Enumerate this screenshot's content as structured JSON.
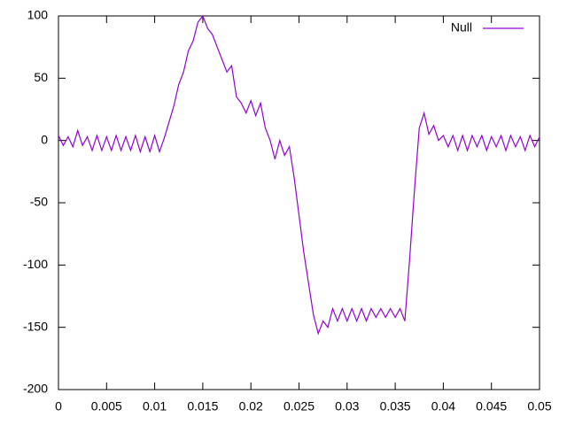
{
  "chart_data": {
    "type": "line",
    "x": [
      0,
      0.0005,
      0.001,
      0.0015,
      0.002,
      0.0025,
      0.003,
      0.0035,
      0.004,
      0.0045,
      0.005,
      0.0055,
      0.006,
      0.0065,
      0.007,
      0.0075,
      0.008,
      0.0085,
      0.009,
      0.0095,
      0.01,
      0.0105,
      0.011,
      0.0115,
      0.012,
      0.0125,
      0.013,
      0.0135,
      0.014,
      0.0145,
      0.015,
      0.0155,
      0.016,
      0.0165,
      0.017,
      0.0175,
      0.018,
      0.0185,
      0.019,
      0.0195,
      0.02,
      0.0205,
      0.021,
      0.0215,
      0.022,
      0.0225,
      0.023,
      0.0235,
      0.024,
      0.0245,
      0.025,
      0.0255,
      0.026,
      0.0265,
      0.027,
      0.0275,
      0.028,
      0.0285,
      0.029,
      0.0295,
      0.03,
      0.0305,
      0.031,
      0.0315,
      0.032,
      0.0325,
      0.033,
      0.0335,
      0.034,
      0.0345,
      0.035,
      0.0355,
      0.036,
      0.0365,
      0.037,
      0.0375,
      0.038,
      0.0385,
      0.039,
      0.0395,
      0.04,
      0.0405,
      0.041,
      0.0415,
      0.042,
      0.0425,
      0.043,
      0.0435,
      0.044,
      0.0445,
      0.045,
      0.0455,
      0.046,
      0.0465,
      0.047,
      0.0475,
      0.048,
      0.0485,
      0.049,
      0.0495,
      0.05
    ],
    "series": [
      {
        "name": "Null",
        "color": "#9400d3",
        "values": [
          4,
          -4,
          3,
          -5,
          8,
          -4,
          3,
          -8,
          4,
          -8,
          3,
          -8,
          4,
          -8,
          3,
          -8,
          4,
          -9,
          3,
          -9,
          4,
          -9,
          2,
          15,
          28,
          45,
          55,
          72,
          80,
          95,
          100,
          90,
          85,
          75,
          65,
          55,
          60,
          35,
          30,
          22,
          32,
          20,
          30,
          10,
          0,
          -15,
          0,
          -12,
          -5,
          -30,
          -60,
          -90,
          -115,
          -140,
          -155,
          -145,
          -150,
          -135,
          -145,
          -135,
          -145,
          -135,
          -145,
          -135,
          -145,
          -135,
          -142,
          -135,
          -142,
          -135,
          -142,
          -135,
          -145,
          -95,
          -40,
          10,
          22,
          5,
          12,
          0,
          4,
          -5,
          4,
          -8,
          4,
          -8,
          4,
          -5,
          4,
          -8,
          3,
          -5,
          4,
          -8,
          4,
          -5,
          3,
          -8,
          4,
          -5,
          3
        ]
      }
    ],
    "xlim": [
      0,
      0.05
    ],
    "xticks": [
      0,
      0.005,
      0.01,
      0.015,
      0.02,
      0.025,
      0.03,
      0.035,
      0.04,
      0.045,
      0.05
    ],
    "ylim": [
      -200,
      100
    ],
    "yticks": [
      -200,
      -150,
      -100,
      -50,
      0,
      50,
      100
    ],
    "grid": false,
    "legend": "top-right"
  }
}
